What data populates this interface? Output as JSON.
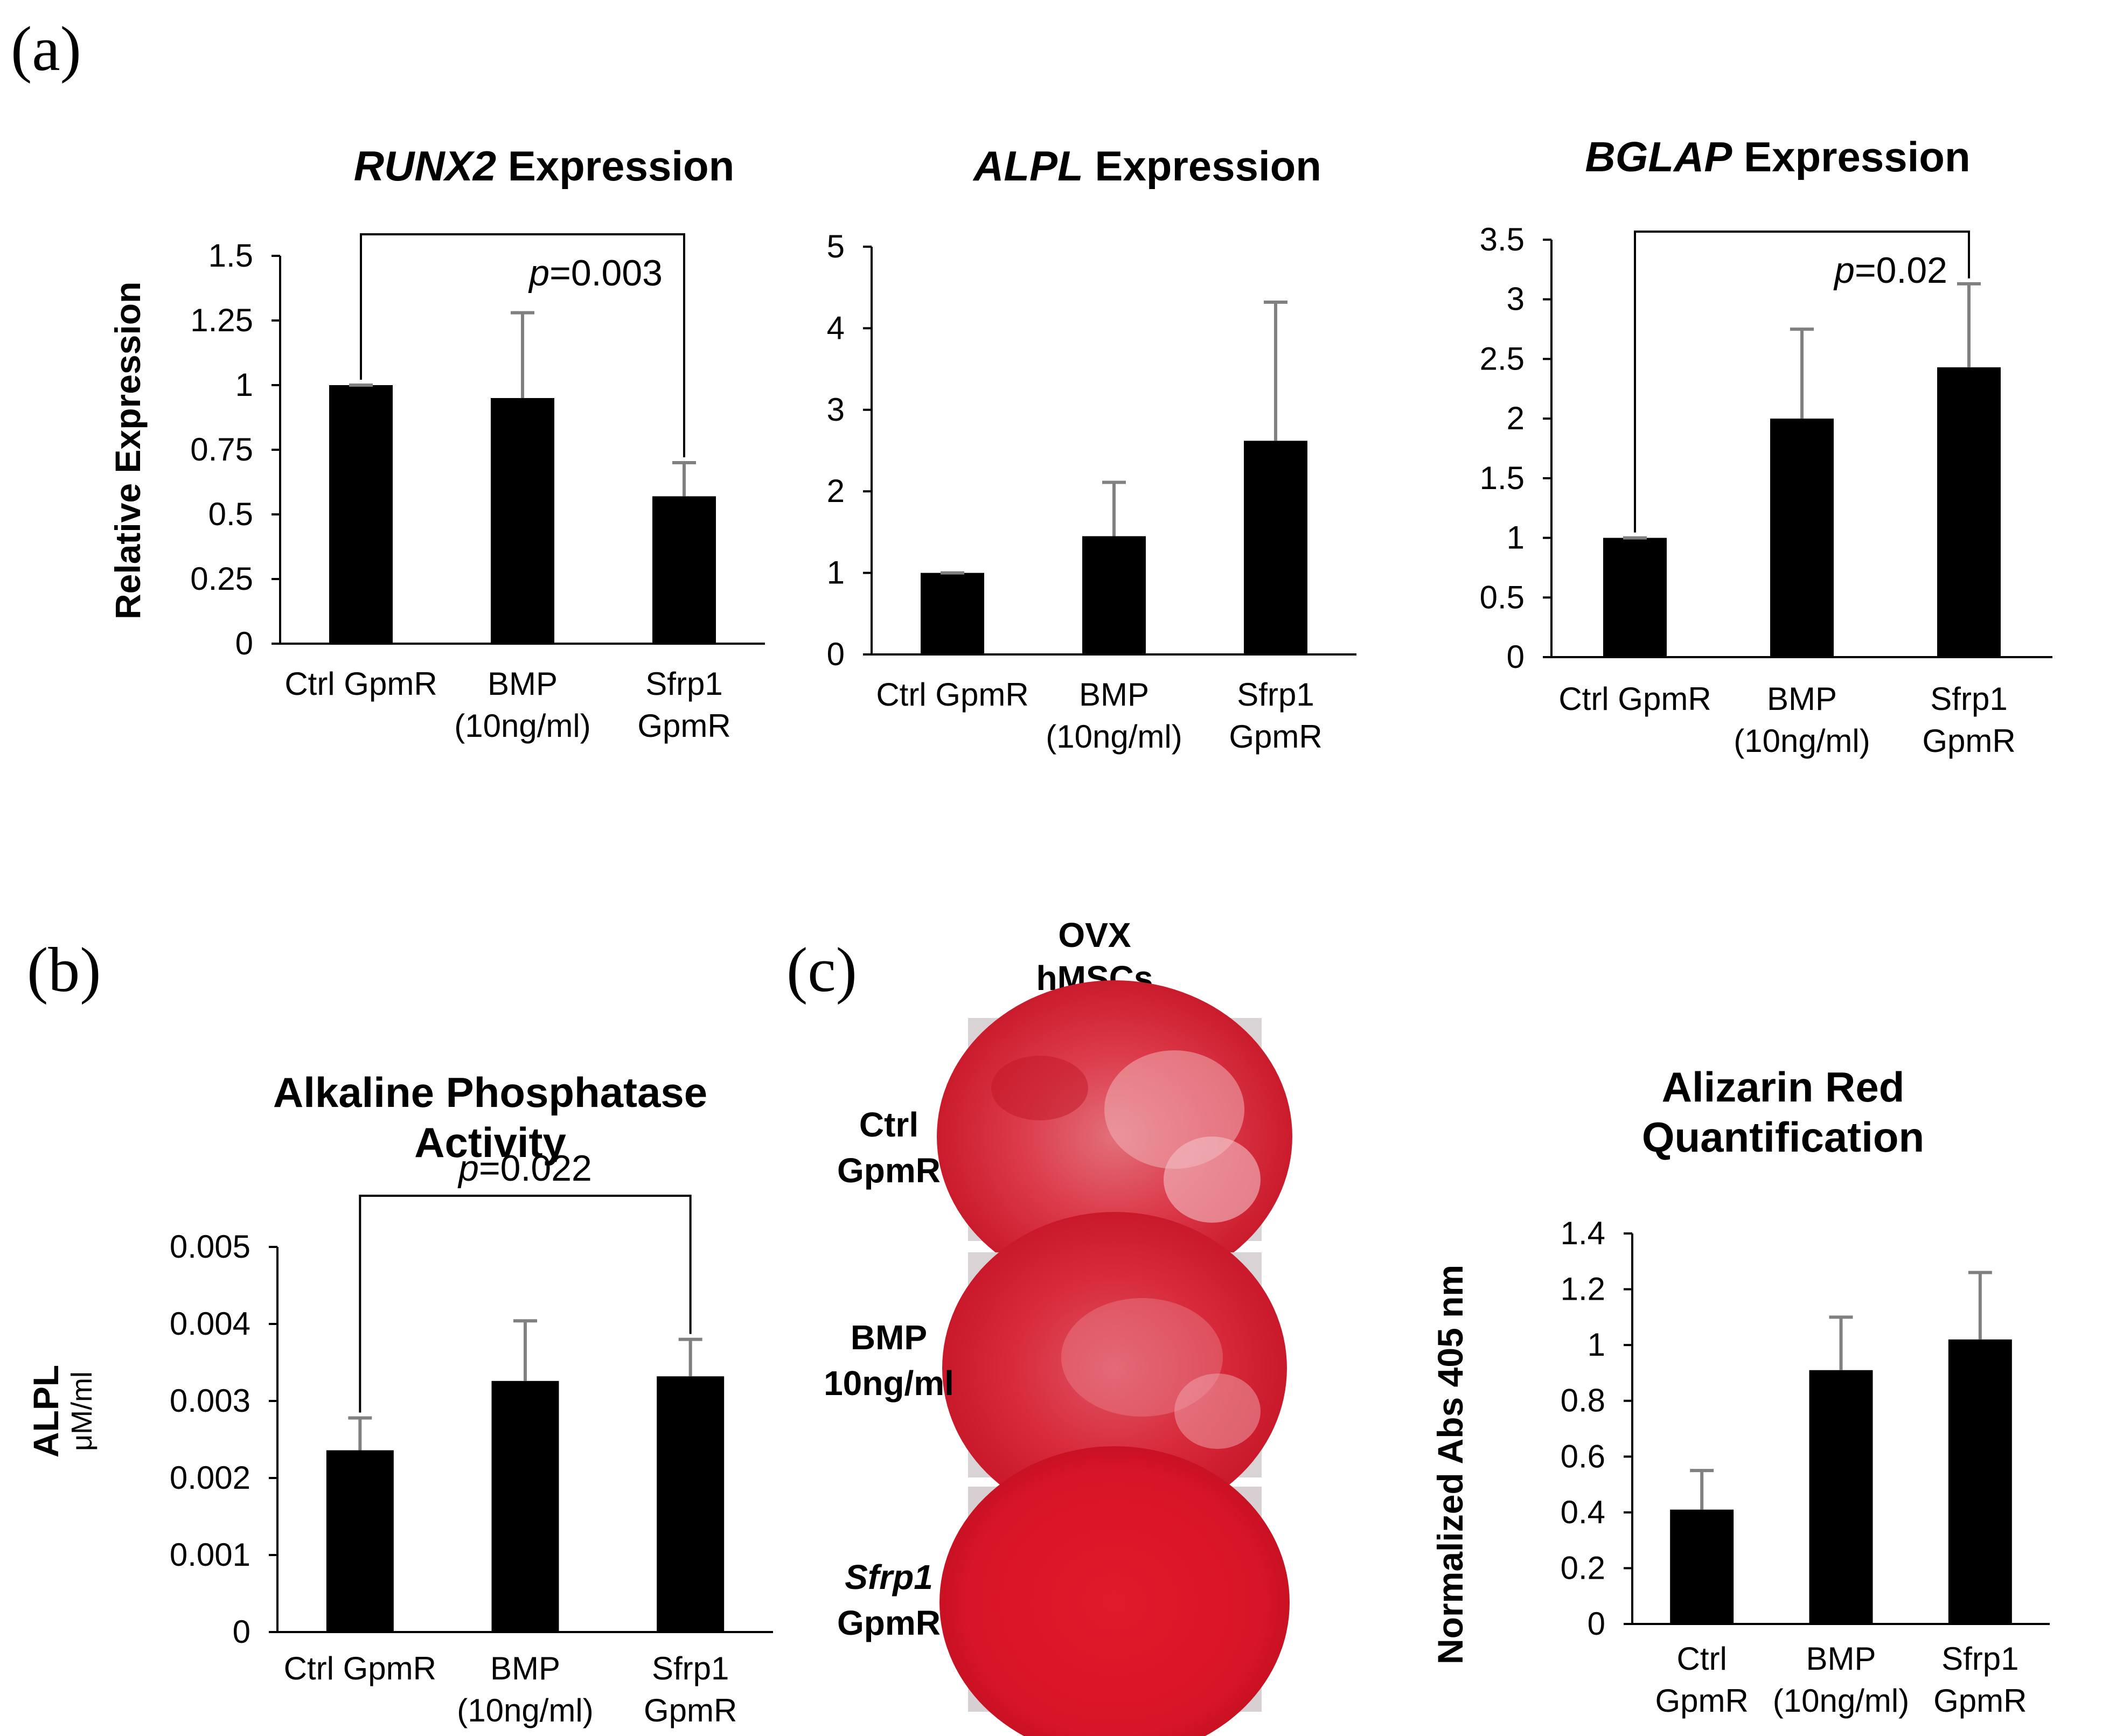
{
  "panel_labels": {
    "a": "(a)",
    "b": "(b)",
    "c": "(c)"
  },
  "chart_data": [
    {
      "type": "bar",
      "panel": "a",
      "title_italic": "RUNX2",
      "title_rest": " Expression",
      "ylabel": "Relative Expression",
      "ylim": [
        0,
        1.5
      ],
      "ytick_labels": [
        "0",
        "0.25",
        "0.5",
        "0.75",
        "1",
        "1.25",
        "1.5"
      ],
      "categories": [
        [
          "Ctrl GpmR"
        ],
        [
          "BMP",
          "(10ng/ml)"
        ],
        [
          "Sfrp1",
          "GpmR"
        ]
      ],
      "values": [
        1.0,
        0.95,
        0.57
      ],
      "errors": [
        0.0,
        0.33,
        0.13
      ],
      "pvalue": {
        "italic": "p",
        "text": "=0.003",
        "from": 0,
        "to": 2
      }
    },
    {
      "type": "bar",
      "panel": "a",
      "title_italic": "ALPL",
      "title_rest": " Expression",
      "ylabel": "",
      "ylim": [
        0,
        5
      ],
      "ytick_labels": [
        "0",
        "1",
        "2",
        "3",
        "4",
        "5"
      ],
      "categories": [
        [
          "Ctrl GpmR"
        ],
        [
          "BMP",
          "(10ng/ml)"
        ],
        [
          "Sfrp1",
          "GpmR"
        ]
      ],
      "values": [
        1.0,
        1.45,
        2.62
      ],
      "errors": [
        0.0,
        0.66,
        1.7
      ]
    },
    {
      "type": "bar",
      "panel": "a",
      "title_italic": "BGLAP",
      "title_rest": " Expression",
      "ylabel": "",
      "ylim": [
        0,
        3.5
      ],
      "ytick_labels": [
        "0",
        "0.5",
        "1",
        "1.5",
        "2",
        "2.5",
        "3",
        "3.5"
      ],
      "categories": [
        [
          "Ctrl GpmR"
        ],
        [
          "BMP",
          "(10ng/ml)"
        ],
        [
          "Sfrp1",
          "GpmR"
        ]
      ],
      "values": [
        1.0,
        2.0,
        2.43
      ],
      "errors": [
        0.0,
        0.75,
        0.7
      ],
      "pvalue": {
        "italic": "p",
        "text": "=0.02",
        "from": 0,
        "to": 2
      }
    },
    {
      "type": "bar",
      "panel": "b",
      "title_lines": [
        "Alkaline Phosphatase",
        "Activity"
      ],
      "ylabel": "ALPL",
      "ylabel_sub": "μM/ml",
      "ylim": [
        0,
        0.005
      ],
      "ytick_labels": [
        "0",
        "0.001",
        "0.002",
        "0.003",
        "0.004",
        "0.005"
      ],
      "categories": [
        [
          "Ctrl GpmR"
        ],
        [
          "BMP",
          "(10ng/ml)"
        ],
        [
          "Sfrp1",
          "GpmR"
        ]
      ],
      "values": [
        0.00236,
        0.00326,
        0.00332
      ],
      "errors": [
        0.00042,
        0.00078,
        0.00048
      ],
      "pvalue": {
        "italic": "p",
        "text": "=0.022",
        "from": 0,
        "to": 2
      }
    },
    {
      "type": "bar",
      "panel": "c",
      "title_lines": [
        "Alizarin Red",
        "Quantification"
      ],
      "ylabel": "Normalized Abs 405 nm",
      "ylim": [
        0,
        1.4
      ],
      "ytick_labels": [
        "0",
        "0.2",
        "0.4",
        "0.6",
        "0.8",
        "1",
        "1.2",
        "1.4"
      ],
      "categories": [
        [
          "Ctrl",
          "GpmR"
        ],
        [
          "BMP",
          "(10ng/ml)"
        ],
        [
          "Sfrp1",
          "GpmR"
        ]
      ],
      "values": [
        0.41,
        0.91,
        1.02
      ],
      "errors": [
        0.14,
        0.19,
        0.24
      ]
    }
  ],
  "well_images": {
    "header": [
      "OVX",
      "hMSCs"
    ],
    "rows": [
      {
        "label_lines": [
          "Ctrl",
          "GpmR"
        ],
        "italic_first": false
      },
      {
        "label_lines": [
          "BMP",
          "10ng/ml"
        ],
        "italic_first": false
      },
      {
        "label_lines": [
          "Sfrp1",
          "GpmR"
        ],
        "italic_first": true
      }
    ]
  }
}
